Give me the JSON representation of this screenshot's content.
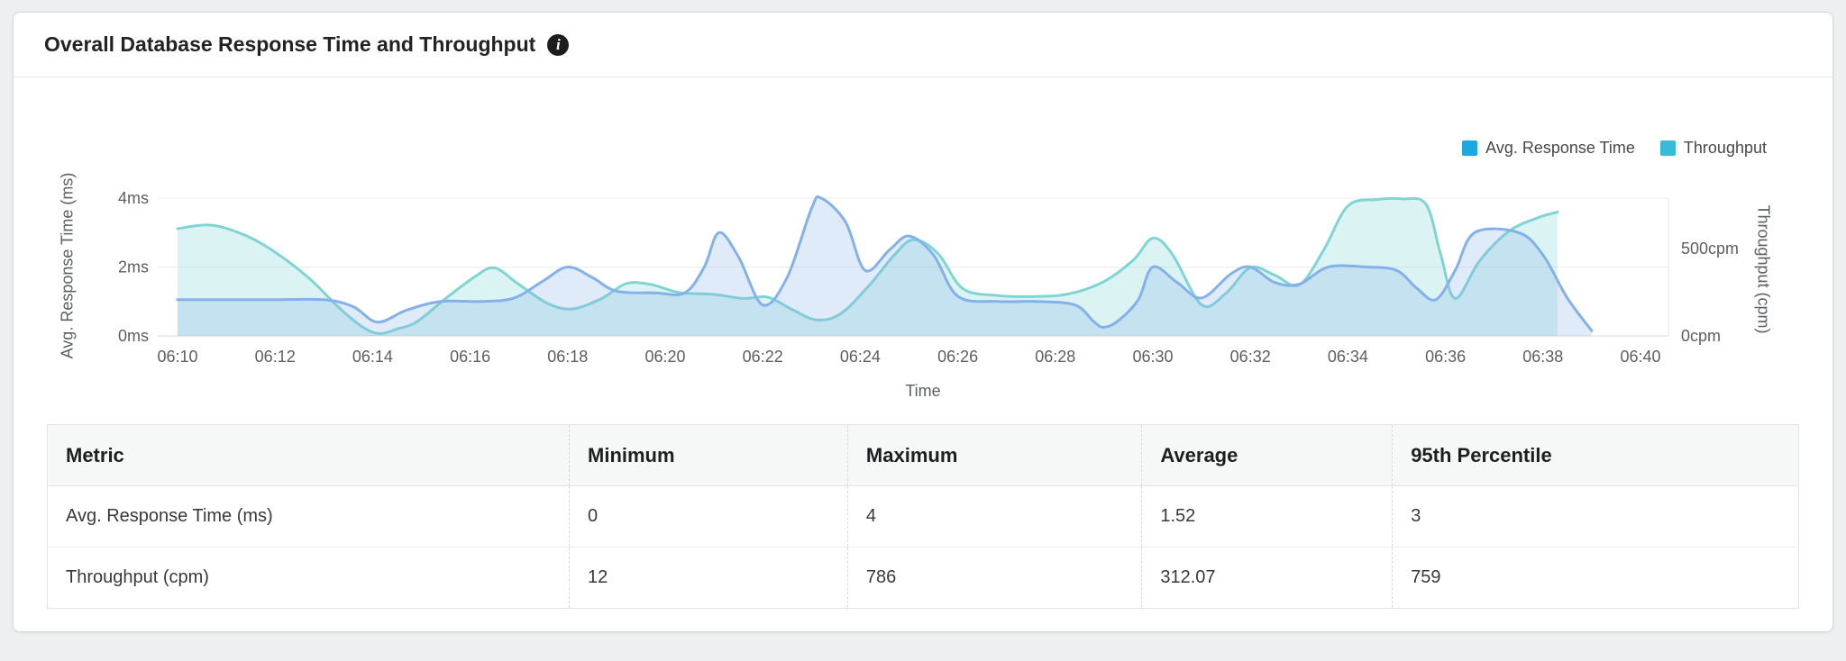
{
  "card": {
    "title": "Overall Database Response Time and Throughput"
  },
  "legend": [
    {
      "label": "Avg. Response Time",
      "color": "#1ca8e3"
    },
    {
      "label": "Throughput",
      "color": "#38bbd7"
    }
  ],
  "chart_data": {
    "type": "area",
    "title": "Overall Database Response Time and Throughput",
    "xlabel": "Time",
    "grid": true,
    "legend_position": "top-right",
    "x_ticks": [
      "06:10",
      "06:12",
      "06:14",
      "06:16",
      "06:18",
      "06:20",
      "06:22",
      "06:24",
      "06:26",
      "06:28",
      "06:30",
      "06:32",
      "06:34",
      "06:36",
      "06:38",
      "06:40"
    ],
    "x_range_minutes": [
      0,
      30
    ],
    "left_axis": {
      "label": "Avg. Response Time (ms)",
      "range": [
        0,
        4
      ],
      "ticks": [
        {
          "v": 0,
          "label": "0ms"
        },
        {
          "v": 2,
          "label": "2ms"
        },
        {
          "v": 4,
          "label": "4ms"
        }
      ]
    },
    "right_axis": {
      "label": "Throughput (cpm)",
      "range": [
        0,
        790
      ],
      "ticks": [
        {
          "v": 0,
          "label": "0cpm"
        },
        {
          "v": 500,
          "label": "500cpm"
        }
      ]
    },
    "series": [
      {
        "name": "Throughput",
        "axis": "right",
        "line_color": "#80d5d3",
        "fill_color": "rgba(128,213,211,0.28)",
        "points": [
          [
            0,
            615
          ],
          [
            0.7,
            635
          ],
          [
            1.4,
            575
          ],
          [
            2,
            480
          ],
          [
            2.7,
            330
          ],
          [
            3.3,
            165
          ],
          [
            3.8,
            50
          ],
          [
            4.15,
            13
          ],
          [
            4.5,
            40
          ],
          [
            4.9,
            80
          ],
          [
            5.5,
            215
          ],
          [
            6.1,
            340
          ],
          [
            6.5,
            390
          ],
          [
            7,
            295
          ],
          [
            7.6,
            185
          ],
          [
            8.1,
            155
          ],
          [
            8.7,
            215
          ],
          [
            9.2,
            300
          ],
          [
            9.7,
            295
          ],
          [
            10.3,
            248
          ],
          [
            11,
            238
          ],
          [
            11.6,
            215
          ],
          [
            12.1,
            222
          ],
          [
            12.6,
            152
          ],
          [
            13.1,
            92
          ],
          [
            13.6,
            128
          ],
          [
            14.2,
            295
          ],
          [
            14.7,
            465
          ],
          [
            15.1,
            552
          ],
          [
            15.6,
            470
          ],
          [
            16.1,
            272
          ],
          [
            16.8,
            232
          ],
          [
            17.6,
            226
          ],
          [
            18.3,
            242
          ],
          [
            19,
            312
          ],
          [
            19.6,
            435
          ],
          [
            20,
            560
          ],
          [
            20.4,
            468
          ],
          [
            21,
            178
          ],
          [
            21.5,
            245
          ],
          [
            22,
            392
          ],
          [
            22.5,
            348
          ],
          [
            23,
            292
          ],
          [
            23.5,
            490
          ],
          [
            24,
            745
          ],
          [
            24.6,
            782
          ],
          [
            25.1,
            786
          ],
          [
            25.6,
            755
          ],
          [
            25.9,
            470
          ],
          [
            26.2,
            215
          ],
          [
            26.7,
            430
          ],
          [
            27.3,
            600
          ],
          [
            27.9,
            678
          ],
          [
            28.3,
            710
          ]
        ]
      },
      {
        "name": "Avg. Response Time",
        "axis": "left",
        "line_color": "#84b1e9",
        "fill_color": "rgba(132,177,233,0.26)",
        "points": [
          [
            0,
            1.05
          ],
          [
            1,
            1.05
          ],
          [
            2,
            1.05
          ],
          [
            3,
            1.05
          ],
          [
            3.6,
            0.85
          ],
          [
            4.1,
            0.4
          ],
          [
            4.7,
            0.75
          ],
          [
            5.4,
            1
          ],
          [
            6.2,
            1
          ],
          [
            6.9,
            1.1
          ],
          [
            7.5,
            1.6
          ],
          [
            8,
            2
          ],
          [
            8.5,
            1.7
          ],
          [
            9,
            1.3
          ],
          [
            9.8,
            1.25
          ],
          [
            10.4,
            1.25
          ],
          [
            10.8,
            2
          ],
          [
            11.1,
            3
          ],
          [
            11.5,
            2.3
          ],
          [
            12,
            0.9
          ],
          [
            12.5,
            1.7
          ],
          [
            13,
            3.7
          ],
          [
            13.2,
            4
          ],
          [
            13.7,
            3.3
          ],
          [
            14.1,
            1.9
          ],
          [
            14.6,
            2.5
          ],
          [
            15,
            2.9
          ],
          [
            15.5,
            2.35
          ],
          [
            16,
            1.15
          ],
          [
            16.8,
            1
          ],
          [
            17.6,
            1
          ],
          [
            18.4,
            0.9
          ],
          [
            18.8,
            0.4
          ],
          [
            19,
            0.25
          ],
          [
            19.3,
            0.45
          ],
          [
            19.7,
            1.05
          ],
          [
            20,
            2
          ],
          [
            20.5,
            1.55
          ],
          [
            21,
            1.1
          ],
          [
            21.6,
            1.8
          ],
          [
            22,
            2
          ],
          [
            22.5,
            1.55
          ],
          [
            23,
            1.5
          ],
          [
            23.6,
            2
          ],
          [
            24.4,
            2
          ],
          [
            25,
            1.9
          ],
          [
            25.4,
            1.4
          ],
          [
            25.8,
            1.05
          ],
          [
            26.2,
            1.9
          ],
          [
            26.6,
            3
          ],
          [
            27.5,
            3
          ],
          [
            28,
            2.35
          ],
          [
            28.5,
            1.1
          ],
          [
            29,
            0.15
          ]
        ]
      }
    ]
  },
  "table": {
    "columns": [
      "Metric",
      "Minimum",
      "Maximum",
      "Average",
      "95th Percentile"
    ],
    "rows": [
      [
        "Avg. Response Time (ms)",
        "0",
        "4",
        "1.52",
        "3"
      ],
      [
        "Throughput (cpm)",
        "12",
        "786",
        "312.07",
        "759"
      ]
    ]
  }
}
